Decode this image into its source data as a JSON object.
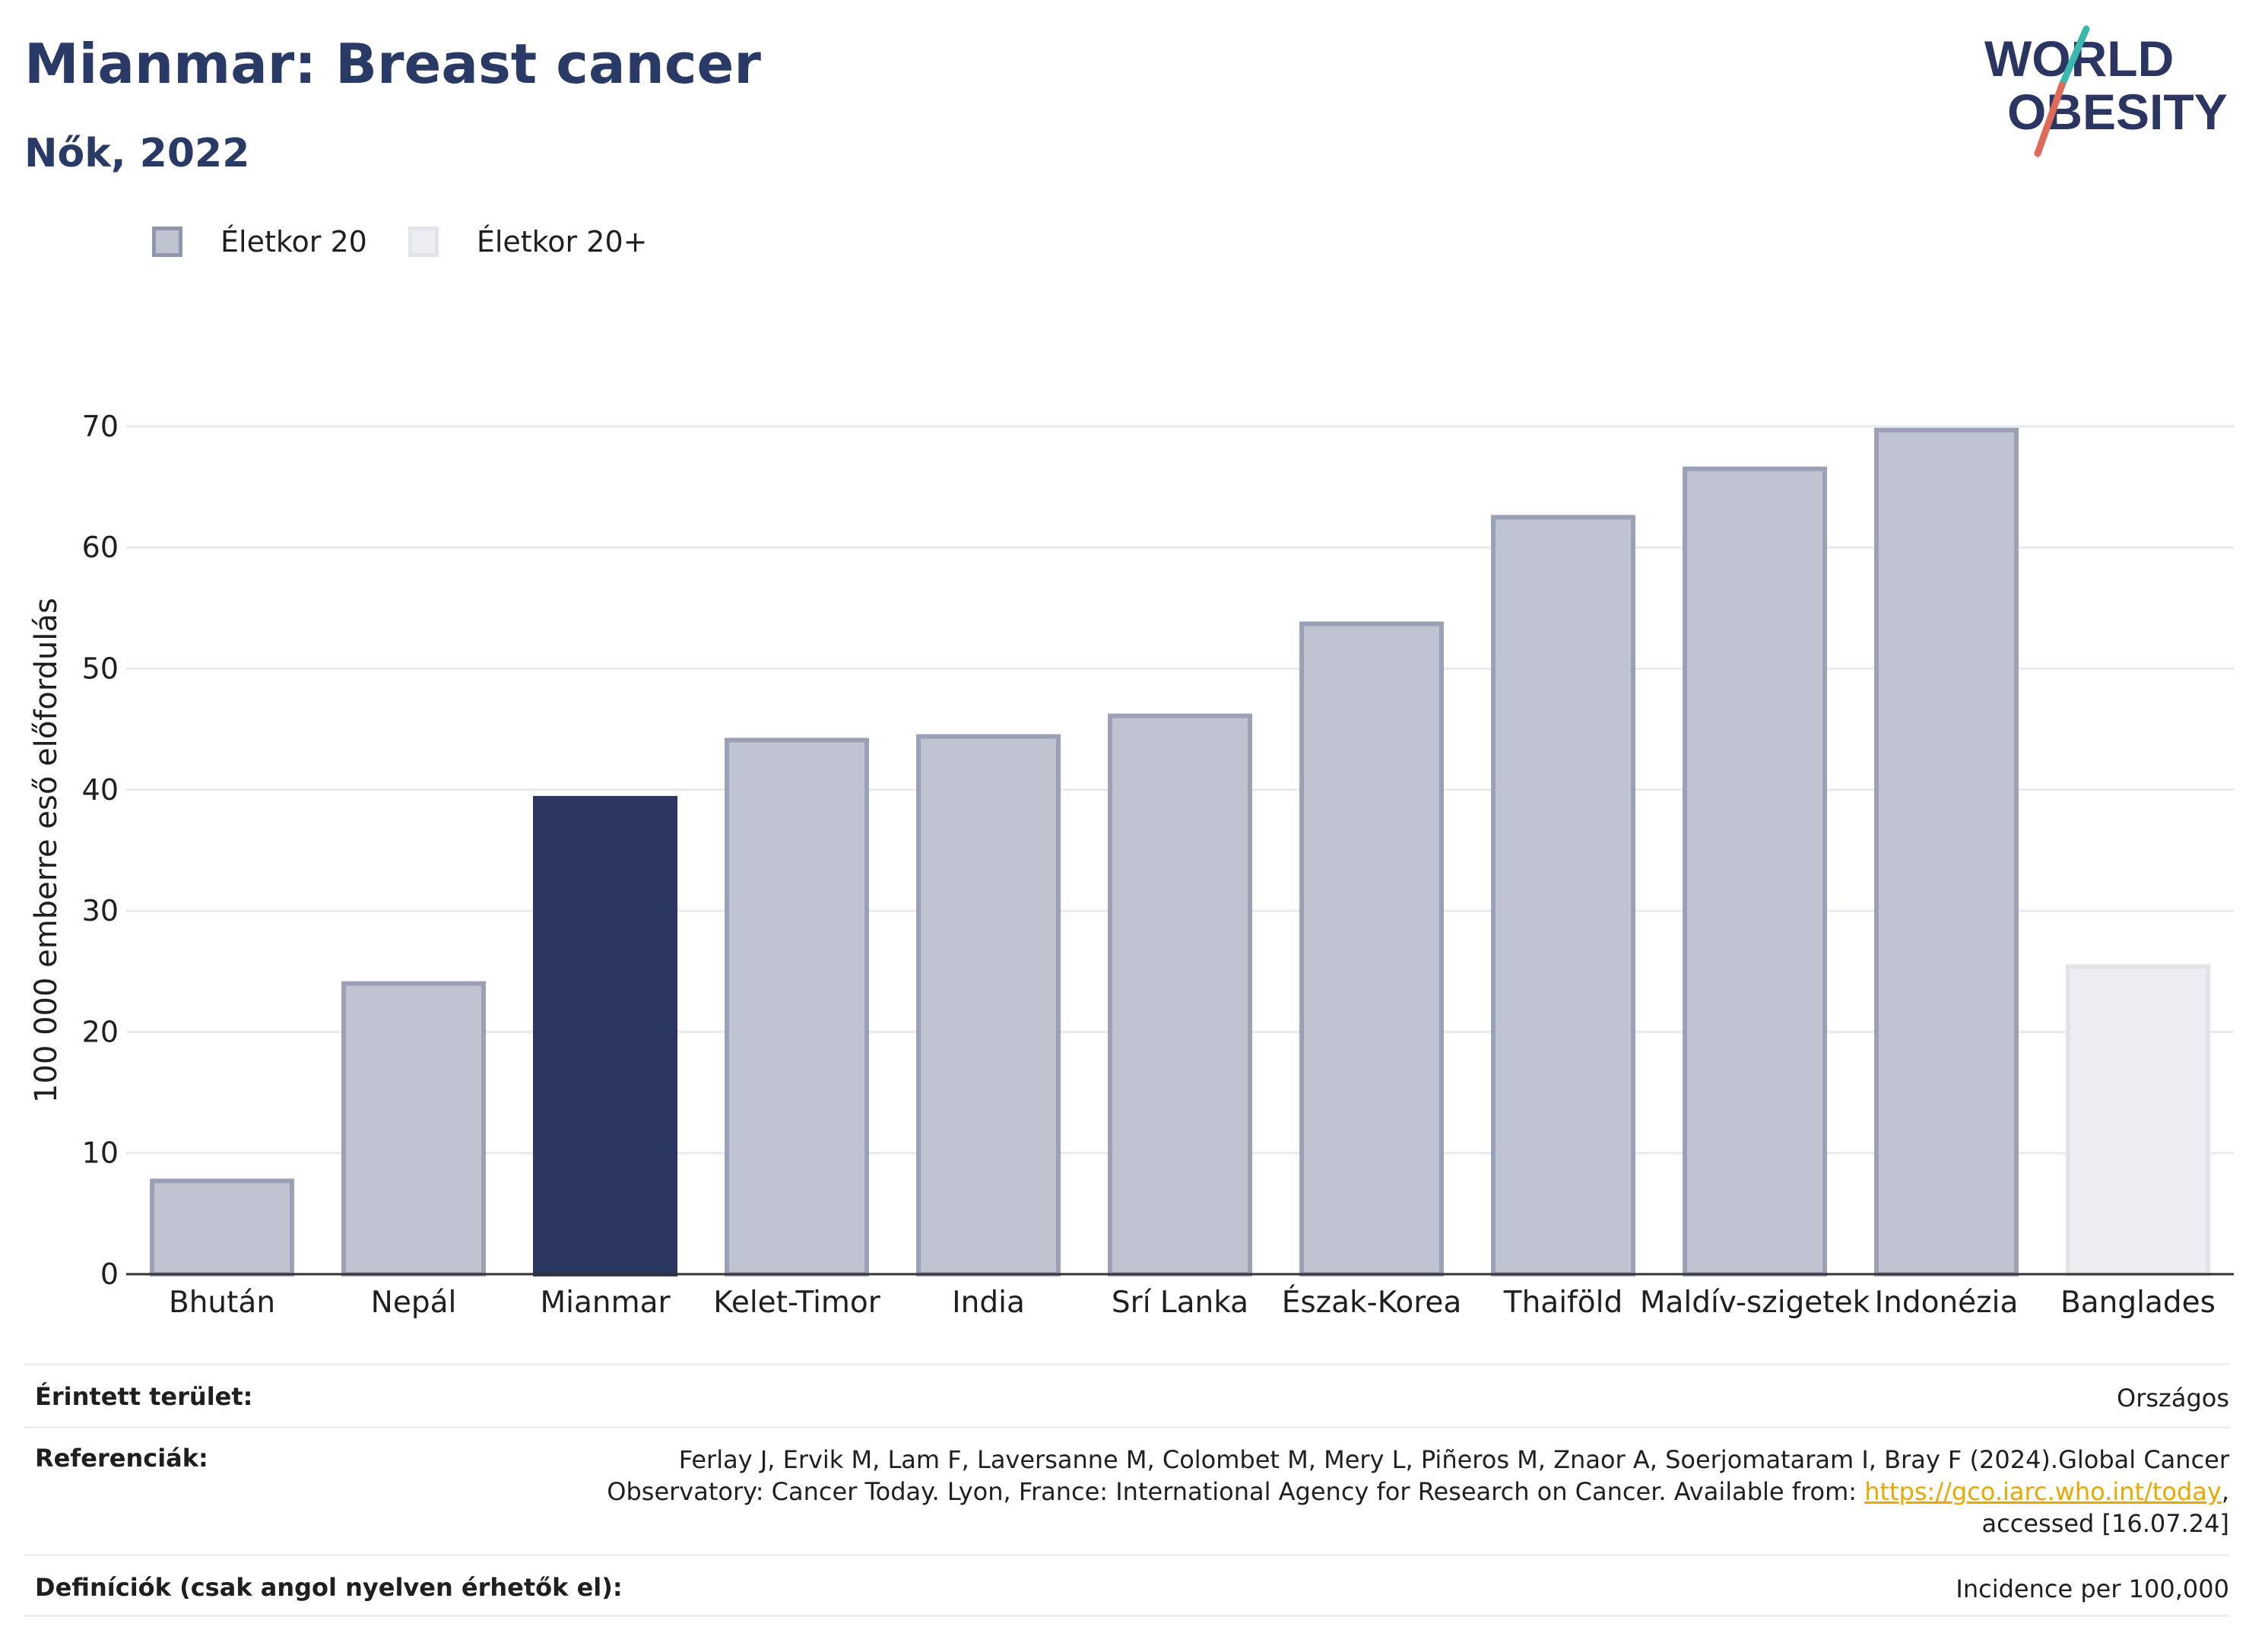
{
  "header": {
    "title": "Mianmar: Breast cancer",
    "subtitle": "Nők, 2022"
  },
  "logo": {
    "line1": "WORLD",
    "line2": "OBESITY"
  },
  "legend": [
    {
      "label": "Életkor 20",
      "color": "#c0c4d0"
    },
    {
      "label": "Életkor 20+",
      "color": "#edeef2"
    }
  ],
  "chart_data": {
    "type": "bar",
    "ylabel": "100 000 emberre eső előfordulás",
    "ylim": [
      0,
      75
    ],
    "yticks": [
      0,
      10,
      20,
      30,
      40,
      50,
      60,
      70
    ],
    "grid": true,
    "legend_position": "top-left",
    "categories": [
      "Bhután",
      "Nepál",
      "Mianmar",
      "Kelet-Timor",
      "India",
      "Srí Lanka",
      "Észak-Korea",
      "Thaiföld",
      "Maldív-szigetek",
      "Indonézia",
      "Banglades"
    ],
    "values": [
      7.7,
      24.0,
      39.3,
      44.1,
      44.4,
      46.1,
      53.7,
      62.5,
      66.5,
      69.7,
      25.4
    ],
    "groups": [
      "Életkor 20",
      "Életkor 20",
      "Életkor 20",
      "Életkor 20",
      "Életkor 20",
      "Életkor 20",
      "Életkor 20",
      "Életkor 20",
      "Életkor 20",
      "Életkor 20",
      "Életkor 20+"
    ],
    "highlight": "Mianmar",
    "colors": {
      "highlight": "#2a3661",
      "group_a_fill": "#c0c4d0",
      "group_a_border": "#9aa0b6",
      "group_b_fill": "#edeef2",
      "group_b_border": "#e2e4ea"
    }
  },
  "footer": {
    "area_label": "Érintett terület:",
    "area_value": "Országos",
    "ref_label": "Referenciák:",
    "ref_line1": "Ferlay J, Ervik M, Lam F, Laversanne M, Colombet M, Mery L, Piñeros M, Znaor A, Soerjomataram I, Bray F (2024).Global Cancer",
    "ref_line2_pre": "Observatory: Cancer Today. Lyon, France: International Agency for Research on Cancer. Available from: ",
    "ref_link": "https://gco.iarc.who.int/today",
    "ref_line2_post": ",",
    "ref_line3": "accessed [16.07.24]",
    "def_label": "Definíciók (csak angol nyelven érhetők el):",
    "def_value": "Incidence per 100,000"
  }
}
